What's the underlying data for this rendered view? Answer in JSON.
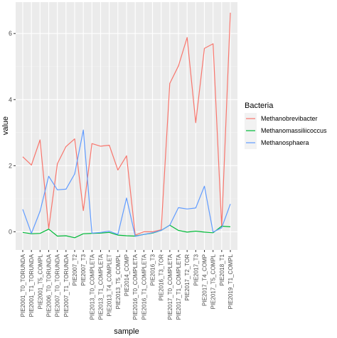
{
  "chart_data": {
    "type": "line",
    "xlabel": "sample",
    "ylabel": "value",
    "ylim": [
      -0.55,
      6.95
    ],
    "yticks": [
      0,
      2,
      4,
      6
    ],
    "grid": true,
    "legend_position": "right",
    "legend_title": "Bacteria",
    "categories": [
      "PIE2001_T0_TORUNDA",
      "PIE2001_T1_TORUNDA",
      "PIE2001_T5_COMPL",
      "PIE2006_T0_TORUNDA",
      "PIE2007_T0_TORUNDA",
      "PIE2007_T1_TORUNDA",
      "PIE2007_T2",
      "PIE2007_T3",
      "PIE2013_T0_COMPLETA",
      "PIE2013_T1_COMPLETA",
      "PIE2013_T4_COMPLET",
      "PIE2013_T5_COMPL",
      "PIE2014_COMP",
      "PIE2016_T0_COMPLETA",
      "PIE2016_T1_COMPLETA",
      "PIE2016_T3",
      "PIE2016_T3_TOR",
      "PIE2017_T0_COMPLETA",
      "PIE2017_T1_COMPLETA",
      "PIE2017_T2_TOR",
      "PIE2017_T3",
      "PIE2017_T4_COMP",
      "PIE2017_T5_COMPL",
      "PIE2018_T1",
      "PIE2019_T1_COMPL"
    ],
    "series": [
      {
        "name": "Methanobrevibacter",
        "color": "#F8766D",
        "values": [
          2.27,
          2.02,
          2.78,
          0.1,
          2.06,
          2.58,
          2.81,
          0.64,
          2.67,
          2.59,
          2.62,
          1.87,
          2.3,
          -0.1,
          0.0,
          0.0,
          0.06,
          4.49,
          5.02,
          5.88,
          3.3,
          5.55,
          5.69,
          0.15,
          6.63
        ]
      },
      {
        "name": "Methanomassiliicoccus",
        "color": "#00BA38",
        "values": [
          -0.02,
          -0.06,
          -0.05,
          0.08,
          -0.13,
          -0.12,
          -0.18,
          -0.06,
          -0.05,
          -0.04,
          -0.02,
          -0.1,
          -0.12,
          -0.13,
          -0.08,
          -0.04,
          0.04,
          0.2,
          0.04,
          -0.01,
          0.02,
          -0.01,
          -0.03,
          0.17,
          0.15
        ]
      },
      {
        "name": "Methanosphaera",
        "color": "#619CFF",
        "values": [
          0.68,
          -0.05,
          0.62,
          1.68,
          1.27,
          1.29,
          1.75,
          3.08,
          -0.04,
          -0.02,
          0.02,
          -0.08,
          1.02,
          -0.14,
          -0.08,
          -0.03,
          0.04,
          0.2,
          0.73,
          0.69,
          0.72,
          1.38,
          -0.01,
          0.12,
          0.84
        ]
      }
    ]
  }
}
